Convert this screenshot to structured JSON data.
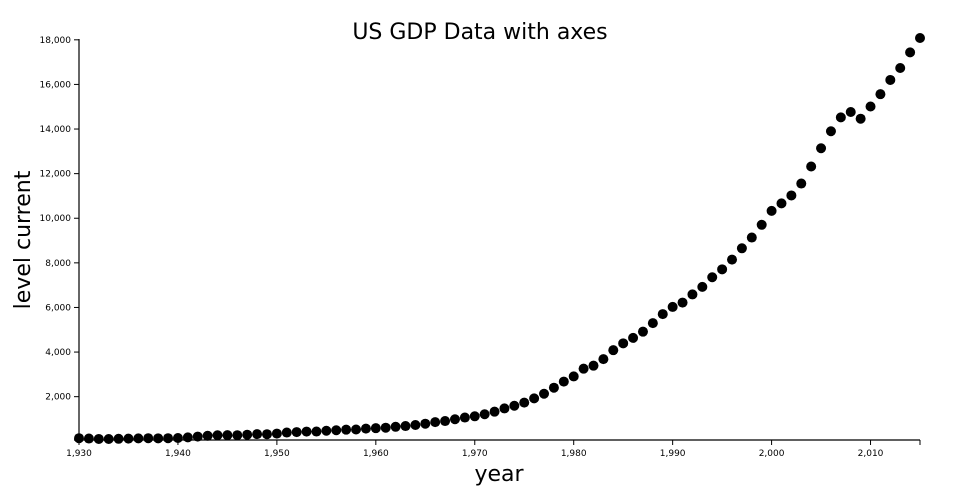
{
  "chart_data": {
    "type": "scatter",
    "title": "US GDP Data with axes",
    "xlabel": "year",
    "ylabel": "level current",
    "xlim": [
      1930,
      2015
    ],
    "ylim": [
      57.2,
      18036.6
    ],
    "x_ticks": [
      "1,930",
      "1,940",
      "1,950",
      "1,960",
      "1,970",
      "1,980",
      "1,990",
      "2,000",
      "2,010"
    ],
    "x_tick_values": [
      1930,
      1940,
      1950,
      1960,
      1970,
      1980,
      1990,
      2000,
      2010
    ],
    "y_ticks": [
      "2,000",
      "4,000",
      "6,000",
      "8,000",
      "10,000",
      "12,000",
      "14,000",
      "16,000",
      "18,000"
    ],
    "y_tick_values": [
      2000,
      4000,
      6000,
      8000,
      10000,
      12000,
      14000,
      16000,
      18000
    ],
    "grid": false,
    "marker_color": "#000000",
    "x": [
      1930,
      1931,
      1932,
      1933,
      1934,
      1935,
      1936,
      1937,
      1938,
      1939,
      1940,
      1941,
      1942,
      1943,
      1944,
      1945,
      1946,
      1947,
      1948,
      1949,
      1950,
      1951,
      1952,
      1953,
      1954,
      1955,
      1956,
      1957,
      1958,
      1959,
      1960,
      1961,
      1962,
      1963,
      1964,
      1965,
      1966,
      1967,
      1968,
      1969,
      1970,
      1971,
      1972,
      1973,
      1974,
      1975,
      1976,
      1977,
      1978,
      1979,
      1980,
      1981,
      1982,
      1983,
      1984,
      1985,
      1986,
      1987,
      1988,
      1989,
      1990,
      1991,
      1992,
      1993,
      1994,
      1995,
      1996,
      1997,
      1998,
      1999,
      2000,
      2001,
      2002,
      2003,
      2004,
      2005,
      2006,
      2007,
      2008,
      2009,
      2010,
      2011,
      2012,
      2013,
      2014,
      2015
    ],
    "y": [
      92.2,
      77.4,
      59.5,
      57.2,
      66.8,
      74.3,
      84.9,
      93.0,
      87.4,
      93.5,
      102.9,
      129.4,
      166.0,
      203.1,
      224.6,
      228.2,
      227.8,
      249.9,
      274.8,
      272.8,
      300.2,
      347.3,
      367.7,
      389.7,
      391.1,
      426.2,
      450.1,
      474.9,
      482.0,
      522.5,
      543.3,
      563.3,
      605.1,
      638.6,
      685.8,
      743.7,
      815.0,
      861.7,
      942.5,
      1019.9,
      1075.9,
      1167.8,
      1282.4,
      1428.5,
      1548.8,
      1688.9,
      1877.6,
      2086.0,
      2356.6,
      2632.1,
      2862.5,
      3211.0,
      3345.0,
      3638.1,
      4040.7,
      4346.7,
      4590.2,
      4870.2,
      5252.6,
      5657.7,
      5979.6,
      6174.0,
      6539.3,
      6878.7,
      7308.8,
      7664.1,
      8100.2,
      8608.5,
      9089.2,
      9660.6,
      10284.8,
      10621.8,
      10977.5,
      11510.7,
      12274.9,
      13093.7,
      13855.9,
      14477.6,
      14718.6,
      14418.7,
      14964.4,
      15517.9,
      16155.3,
      16691.5,
      17393.1,
      18036.6
    ]
  }
}
